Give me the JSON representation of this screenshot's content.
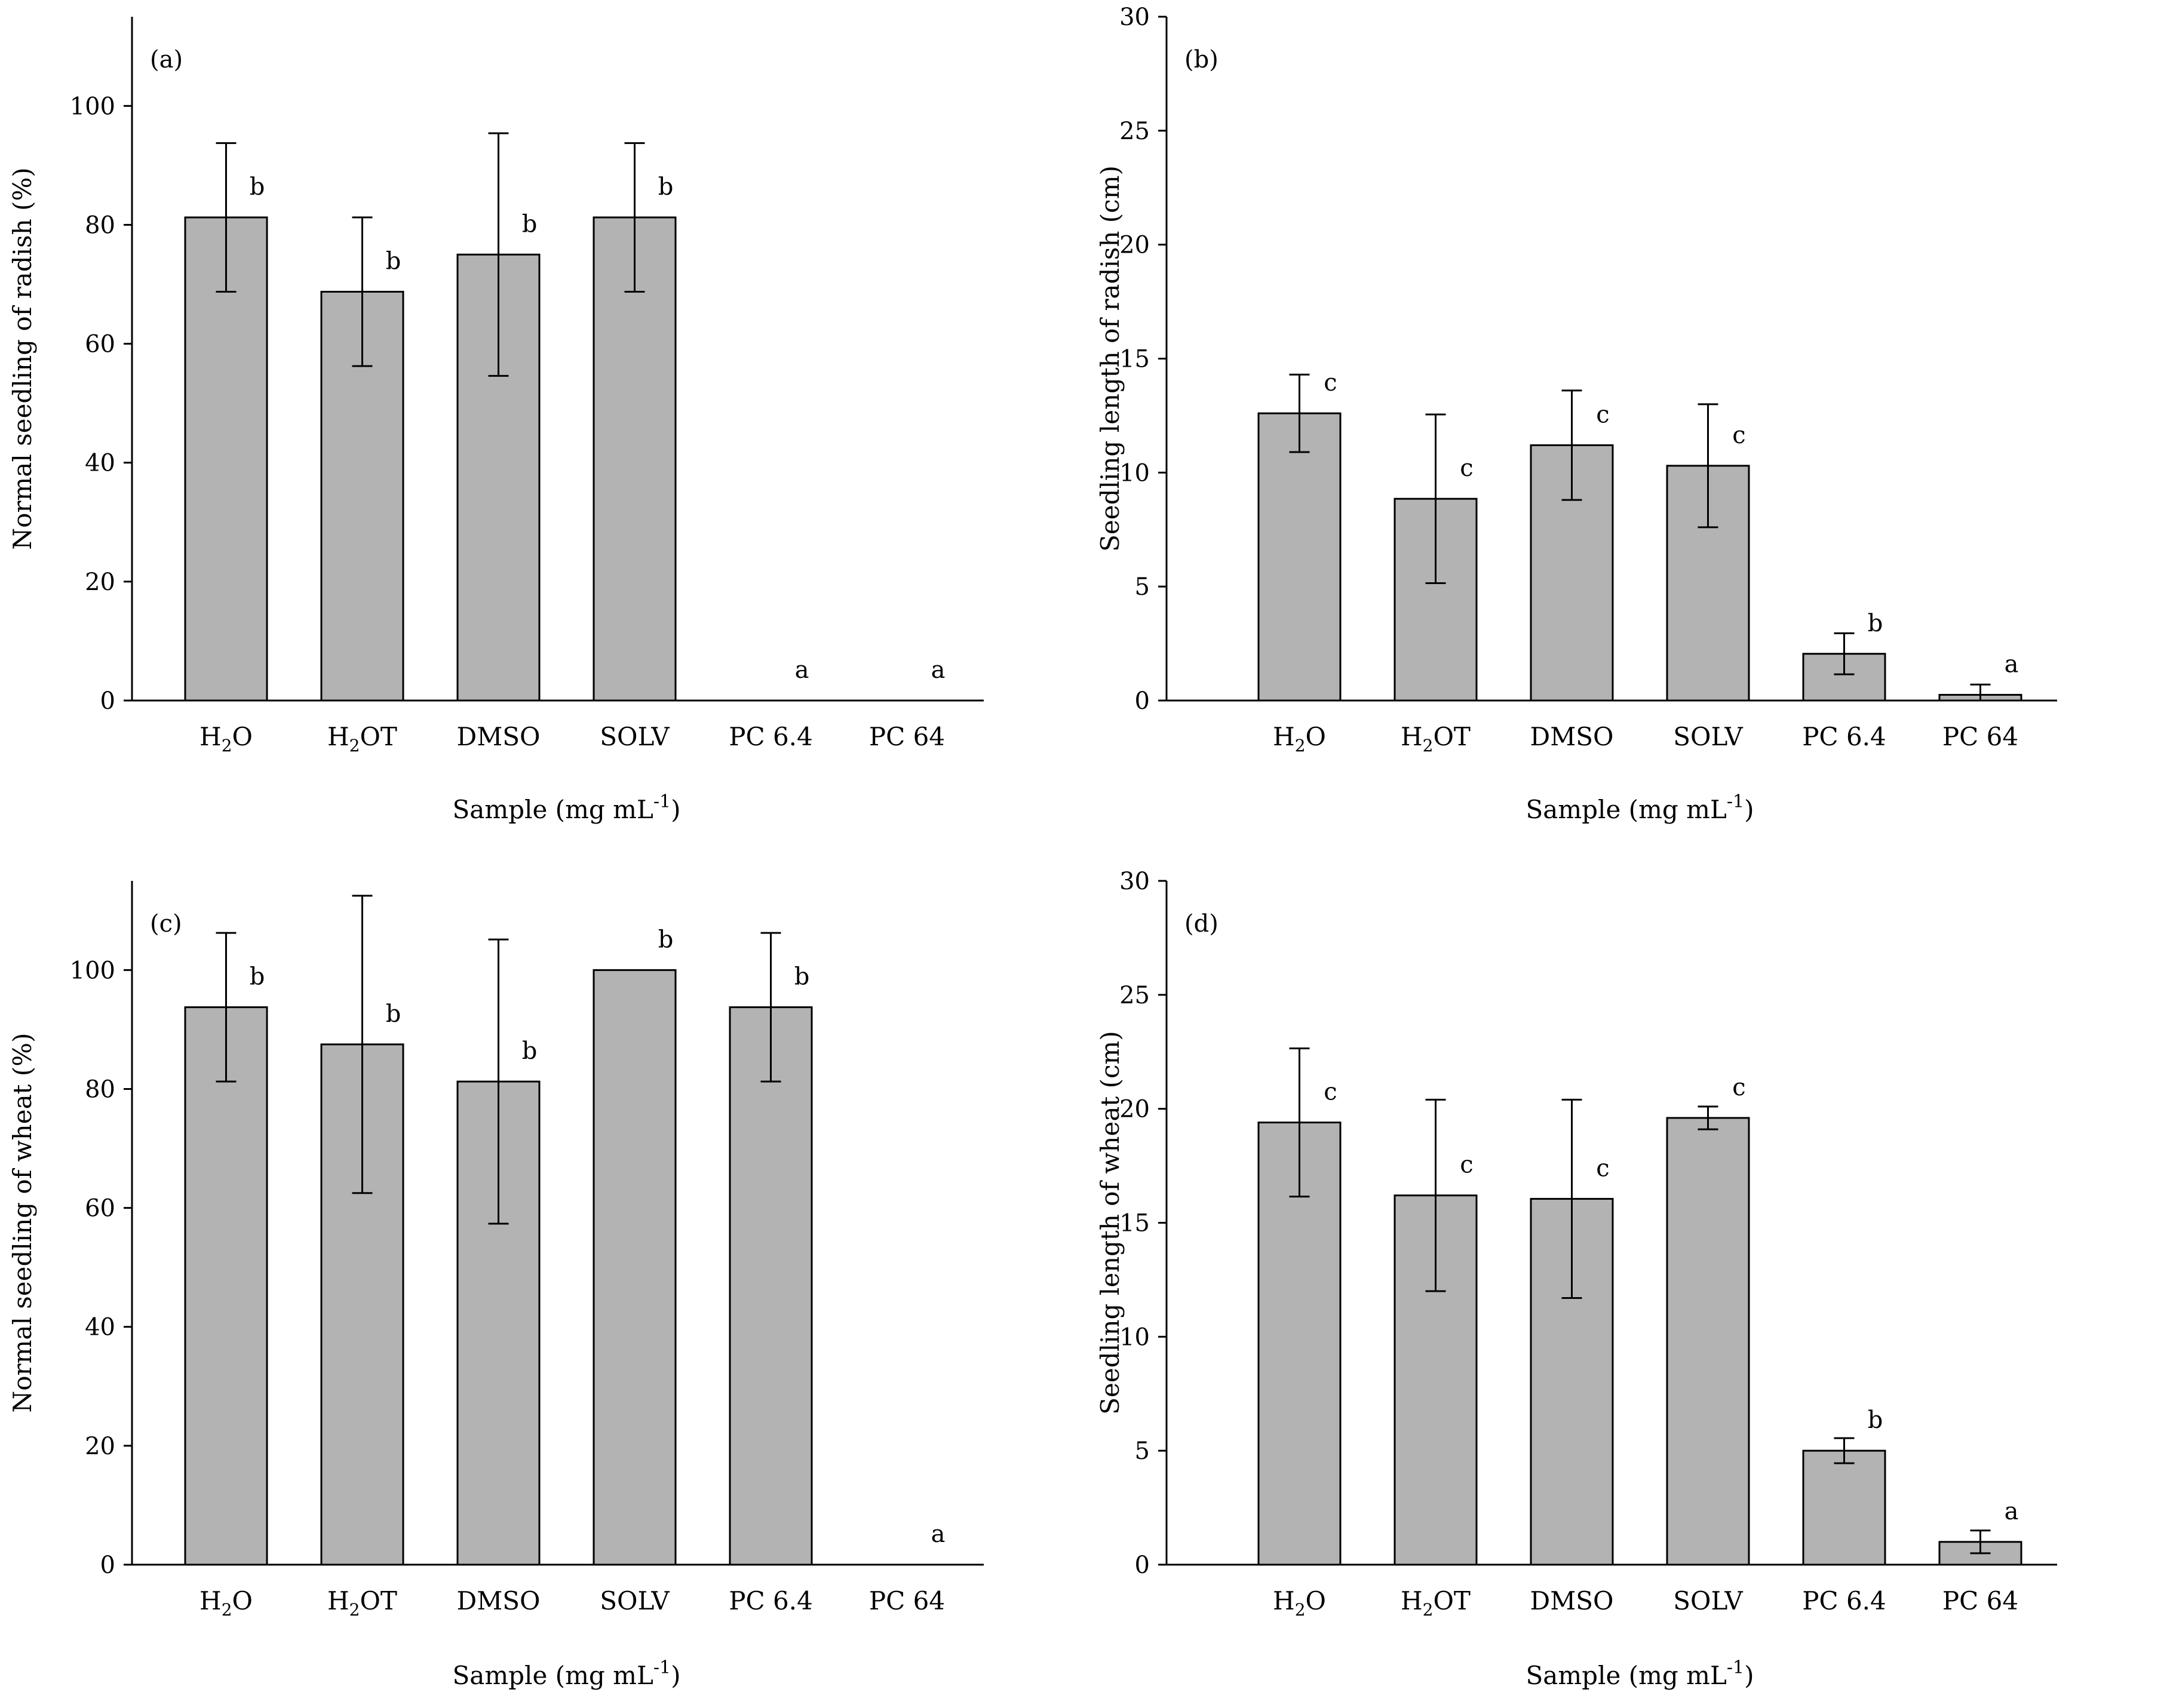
{
  "colors": {
    "bar_fill": "#b3b3b3",
    "bar_stroke": "#000000",
    "axis": "#000000"
  },
  "chart_data": [
    {
      "type": "bar",
      "panel_label": "(a)",
      "title": "",
      "categories": [
        "H2O",
        "H2OT",
        "DMSO",
        "SOLV",
        "PC 6.4",
        "PC 64"
      ],
      "values": [
        81.25,
        68.75,
        75,
        81.25,
        0,
        0
      ],
      "error": [
        12.5,
        12.5,
        20.4,
        12.5,
        0,
        0
      ],
      "significance": [
        "b",
        "b",
        "b",
        "b",
        "a",
        "a"
      ],
      "xlabel": "Sample (mg mL",
      "xlabel_exp": "-1",
      "xlabel_close": ")",
      "ylabel": "Normal seedling of radish (%)",
      "ylim": [
        0,
        115
      ],
      "yticks": [
        0,
        20,
        40,
        60,
        80,
        100
      ],
      "grid": false
    },
    {
      "type": "bar",
      "panel_label": "(b)",
      "title": "",
      "categories": [
        "H2O",
        "H2OT",
        "DMSO",
        "SOLV",
        "PC 6.4",
        "PC 64"
      ],
      "values": [
        12.6,
        8.85,
        11.2,
        10.3,
        2.05,
        0.25
      ],
      "error": [
        1.7,
        3.7,
        2.4,
        2.7,
        0.9,
        0.45
      ],
      "significance": [
        "c",
        "c",
        "c",
        "c",
        "b",
        "a"
      ],
      "xlabel": "Sample (mg mL",
      "xlabel_exp": "-1",
      "xlabel_close": ")",
      "ylabel": "Seedling length of radish (cm)",
      "ylim": [
        0,
        30
      ],
      "yticks": [
        0,
        5,
        10,
        15,
        20,
        25,
        30
      ],
      "grid": false
    },
    {
      "type": "bar",
      "panel_label": "(c)",
      "title": "",
      "categories": [
        "H2O",
        "H2OT",
        "DMSO",
        "SOLV",
        "PC 6.4",
        "PC 64"
      ],
      "values": [
        93.75,
        87.5,
        81.25,
        100,
        93.75,
        0
      ],
      "error": [
        12.5,
        25,
        23.9,
        0,
        12.5,
        0
      ],
      "significance": [
        "b",
        "b",
        "b",
        "b",
        "b",
        "a"
      ],
      "xlabel": "Sample (mg mL",
      "xlabel_exp": "-1",
      "xlabel_close": ")",
      "ylabel": "Normal seedling of wheat (%)",
      "ylim": [
        0,
        115
      ],
      "yticks": [
        0,
        20,
        40,
        60,
        80,
        100
      ],
      "grid": false
    },
    {
      "type": "bar",
      "panel_label": "(d)",
      "title": "",
      "categories": [
        "H2O",
        "H2OT",
        "DMSO",
        "SOLV",
        "PC 6.4",
        "PC 64"
      ],
      "values": [
        19.4,
        16.2,
        16.05,
        19.6,
        5.0,
        1.0
      ],
      "error": [
        3.25,
        4.2,
        4.35,
        0.5,
        0.55,
        0.5
      ],
      "significance": [
        "c",
        "c",
        "c",
        "c",
        "b",
        "a"
      ],
      "xlabel": "Sample (mg mL",
      "xlabel_exp": "-1",
      "xlabel_close": ")",
      "ylabel": "Seedling length of wheat (cm)",
      "ylim": [
        0,
        30
      ],
      "yticks": [
        0,
        5,
        10,
        15,
        20,
        25,
        30
      ],
      "grid": false
    }
  ]
}
